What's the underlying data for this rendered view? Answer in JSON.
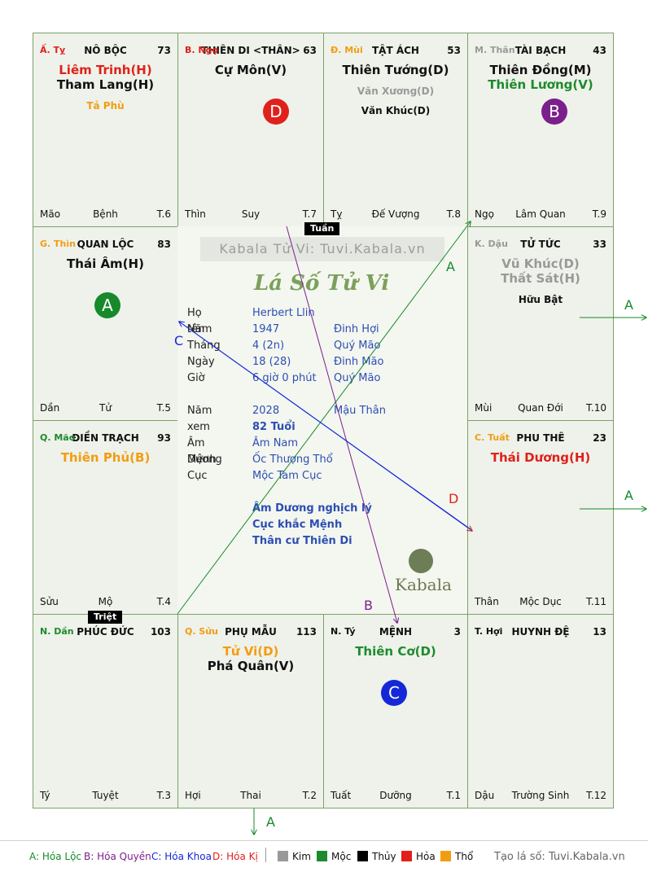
{
  "cells": [
    {
      "can": "Ấ. Tỵ",
      "can_color": "#e0211b",
      "palace": "NÔ BỘC",
      "num": "73",
      "foot_l": "Mão",
      "foot_c": "Bệnh",
      "foot_r": "T.6",
      "stars": [
        {
          "t": "Liêm Trinh(H)",
          "color": "#e0211b",
          "size": "main"
        },
        {
          "t": "Tham Lang(H)",
          "color": "#111111",
          "size": "main"
        },
        {
          "t": "Tả Phù",
          "color": "#f39c12",
          "size": "sub"
        }
      ]
    },
    {
      "can": "B. Ngọ",
      "can_color": "#e0211b",
      "palace": "THIÊN DI <THÂN>",
      "num": "63",
      "foot_l": "Thìn",
      "foot_c": "Suy",
      "foot_r": "T.7",
      "stars": [
        {
          "t": "Cự Môn(V)",
          "color": "#111111",
          "size": "main"
        }
      ]
    },
    {
      "can": "Đ. Mùi",
      "can_color": "#f39c12",
      "palace": "TẬT ÁCH",
      "num": "53",
      "foot_l": "Tỵ",
      "foot_c": "Đế Vượng",
      "foot_r": "T.8",
      "stars": [
        {
          "t": "Thiên Tướng(D)",
          "color": "#111111",
          "size": "main"
        },
        {
          "t": "Văn Xương(D)",
          "color": "#999999",
          "size": "sub"
        },
        {
          "t": "Văn Khúc(D)",
          "color": "#111111",
          "size": "sub"
        }
      ]
    },
    {
      "can": "M. Thân",
      "can_color": "#999999",
      "palace": "TÀI BẠCH",
      "num": "43",
      "foot_l": "Ngọ",
      "foot_c": "Lâm Quan",
      "foot_r": "T.9",
      "stars": [
        {
          "t": "Thiên Đồng(M)",
          "color": "#111111",
          "size": "main"
        },
        {
          "t": "Thiên Lương(V)",
          "color": "#1e8a2e",
          "size": "main"
        }
      ]
    },
    {
      "can": "G. Thìn",
      "can_color": "#f39c12",
      "palace": "QUAN LỘC",
      "num": "83",
      "foot_l": "Dần",
      "foot_c": "Tử",
      "foot_r": "T.5",
      "stars": [
        {
          "t": "Thái Âm(H)",
          "color": "#111111",
          "size": "main"
        }
      ]
    },
    {
      "can": "K. Dậu",
      "can_color": "#999999",
      "palace": "TỬ TỨC",
      "num": "33",
      "foot_l": "Mùi",
      "foot_c": "Quan Đới",
      "foot_r": "T.10",
      "stars": [
        {
          "t": "Vũ Khúc(D)",
          "color": "#999999",
          "size": "main"
        },
        {
          "t": "Thất Sát(H)",
          "color": "#999999",
          "size": "main"
        },
        {
          "t": "Hữu Bật",
          "color": "#111111",
          "size": "sub"
        }
      ]
    },
    {
      "can": "Q. Mão",
      "can_color": "#1e8a2e",
      "palace": "ĐIỀN TRẠCH",
      "num": "93",
      "foot_l": "Sửu",
      "foot_c": "Mộ",
      "foot_r": "T.4",
      "stars": [
        {
          "t": "Thiên Phủ(B)",
          "color": "#f39c12",
          "size": "main"
        }
      ]
    },
    {
      "can": "C. Tuất",
      "can_color": "#f39c12",
      "palace": "PHU THÊ",
      "num": "23",
      "foot_l": "Thân",
      "foot_c": "Mộc Dục",
      "foot_r": "T.11",
      "stars": [
        {
          "t": "Thái Dương(H)",
          "color": "#e0211b",
          "size": "main"
        }
      ]
    },
    {
      "can": "N. Dần",
      "can_color": "#1e8a2e",
      "palace": "PHÚC ĐỨC",
      "num": "103",
      "foot_l": "Tý",
      "foot_c": "Tuyệt",
      "foot_r": "T.3",
      "stars": []
    },
    {
      "can": "Q. Sửu",
      "can_color": "#f39c12",
      "palace": "PHỤ MẪU",
      "num": "113",
      "foot_l": "Hợi",
      "foot_c": "Thai",
      "foot_r": "T.2",
      "stars": [
        {
          "t": "Tử Vi(D)",
          "color": "#f39c12",
          "size": "main"
        },
        {
          "t": "Phá Quân(V)",
          "color": "#111111",
          "size": "main"
        }
      ]
    },
    {
      "can": "N. Tý",
      "can_color": "#111111",
      "palace": "MỆNH",
      "num": "3",
      "foot_l": "Tuất",
      "foot_c": "Dưỡng",
      "foot_r": "T.1",
      "stars": [
        {
          "t": "Thiên Cơ(D)",
          "color": "#1e8a2e",
          "size": "main"
        }
      ]
    },
    {
      "can": "T. Hợi",
      "can_color": "#111111",
      "palace": "HUYNH ĐỆ",
      "num": "13",
      "foot_l": "Dậu",
      "foot_c": "Trường Sinh",
      "foot_r": "T.12",
      "stars": []
    }
  ],
  "circles": [
    {
      "letter": "D",
      "color": "#e0211b"
    },
    {
      "letter": "B",
      "color": "#7b1f8c"
    },
    {
      "letter": "A",
      "color": "#168a2a"
    },
    {
      "letter": "C",
      "color": "#1428d8"
    }
  ],
  "tags": {
    "tuan": "Tuần",
    "triet": "Triệt"
  },
  "center": {
    "site": "Kabala Tử Vi: Tuvi.Kabala.vn",
    "title": "Lá Số Tử Vi",
    "rows": [
      {
        "label": "Họ tên",
        "v1": "Herbert Llin",
        "v2": ""
      },
      {
        "label": "Năm",
        "v1": "1947",
        "v2": "Đinh Hợi"
      },
      {
        "label": "Tháng",
        "v1": "4  (2n)",
        "v2": "Quý Mão"
      },
      {
        "label": "Ngày",
        "v1": "18  (28)",
        "v2": "Đinh Mão"
      },
      {
        "label": "Giờ",
        "v1": "6 giờ 0 phút",
        "v2": "Quý Mão"
      }
    ],
    "rows2": [
      {
        "label": "Năm xem",
        "v1": "2028",
        "v2": "Mậu Thân"
      },
      {
        "label": "",
        "v1": "82 Tuổi",
        "v2": ""
      },
      {
        "label": "Âm Dương",
        "v1": "Âm Nam",
        "v2": ""
      },
      {
        "label": "Mệnh",
        "v1": "Ốc Thượng Thổ",
        "v2": ""
      },
      {
        "label": "Cục",
        "v1": "Mộc Tam Cục",
        "v2": ""
      }
    ],
    "notes": [
      "Âm Dương nghịch lý",
      "Cục khắc Mệnh",
      "Thân cư Thiên Di"
    ],
    "brand": "Kabala"
  },
  "arrows_labels": {
    "a": "A",
    "b": "B",
    "c": "C",
    "d": "D"
  },
  "legend": {
    "a": "A: Hóa Lộc",
    "b": "B: Hóa Quyền",
    "c": "C: Hóa Khoa",
    "d": "D: Hóa Kị",
    "kim": "Kim",
    "moc": "Mộc",
    "thuy": "Thủy",
    "hoa": "Hỏa",
    "tho": "Thổ",
    "site": "Tạo lá số: Tuvi.Kabala.vn",
    "colors": {
      "a": "#168a2a",
      "b": "#7b1f8c",
      "c": "#1428d8",
      "d": "#e0211b",
      "kim": "#999999",
      "moc": "#1e8a2e",
      "thuy": "#000000",
      "hoa": "#e0211b",
      "tho": "#f39c12"
    }
  }
}
